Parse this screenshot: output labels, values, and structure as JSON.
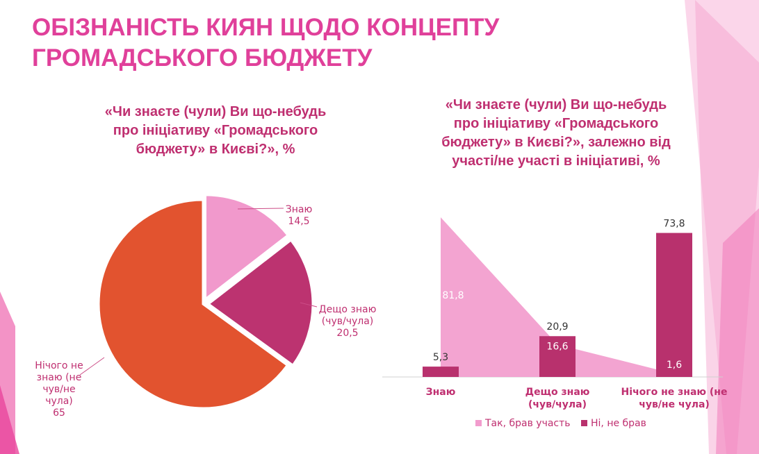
{
  "header": {
    "title_line1": "ОБІЗНАНІСТЬ КИЯН ЩОДО КОНЦЕПТУ",
    "title_line2": "ГРОМАДСЬКОГО БЮДЖЕТУ"
  },
  "colors": {
    "title": "#e0409a",
    "subtitle": "#bf2f70",
    "pie_know": "#f199cc",
    "pie_somewhat": "#bc3370",
    "pie_nothing": "#e2532f",
    "series_participated": "#f29ccd",
    "series_not_participated": "#b8316d"
  },
  "chart_data": [
    {
      "type": "pie",
      "title_lines": [
        "«Чи знаєте (чули) Ви що-небудь",
        "про ініціативу «Громадського",
        "бюджету» в Києві?», %"
      ],
      "slices": [
        {
          "label_lines": [
            "Знаю"
          ],
          "value": 14.5,
          "value_label": "14,5"
        },
        {
          "label_lines": [
            "Дещо знаю",
            "(чув/чула)"
          ],
          "value": 20.5,
          "value_label": "20,5"
        },
        {
          "label_lines": [
            "Нічого не",
            "знаю (не",
            "чув/не",
            "чула)"
          ],
          "value": 65,
          "value_label": "65"
        }
      ]
    },
    {
      "type": "bar",
      "title_lines": [
        "«Чи знаєте (чули) Ви що-небудь",
        "про ініціативу «Громадського",
        "бюджету» в Києві?», залежно від",
        "участі/не участі в ініціативі, %"
      ],
      "categories": [
        [
          "Знаю"
        ],
        [
          "Дещо знаю",
          "(чув/чула)"
        ],
        [
          "Нічого не знаю (не",
          "чув/не чула)"
        ]
      ],
      "ylim": [
        0,
        90
      ],
      "legend_position": "bottom",
      "series": [
        {
          "name": "Так, брав участь",
          "render": "area",
          "values": [
            81.8,
            16.6,
            1.6
          ],
          "value_labels": [
            "81,8",
            "16,6",
            "1,6"
          ]
        },
        {
          "name": "Ні, не брав",
          "render": "bar",
          "values": [
            5.3,
            20.9,
            73.8
          ],
          "value_labels": [
            "5,3",
            "20,9",
            "73,8"
          ]
        }
      ]
    }
  ]
}
